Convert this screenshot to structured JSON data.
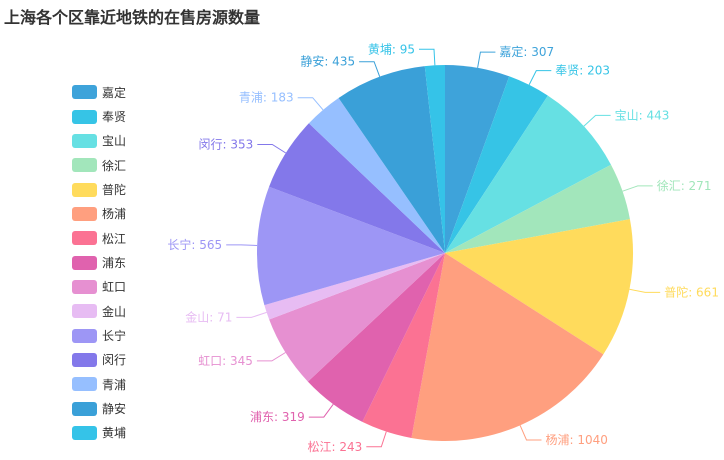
{
  "chart_data": {
    "type": "pie",
    "title": "上海各个区靠近地铁的在售房源数量",
    "legend_position": "left",
    "categories": [
      "嘉定",
      "奉贤",
      "宝山",
      "徐汇",
      "普陀",
      "杨浦",
      "松江",
      "浦东",
      "虹口",
      "金山",
      "长宁",
      "闵行",
      "青浦",
      "静安",
      "黄埔"
    ],
    "values": [
      307,
      203,
      443,
      271,
      661,
      1040,
      243,
      319,
      345,
      71,
      565,
      353,
      183,
      435,
      95
    ],
    "colors": [
      "#3ea3da",
      "#36c4e6",
      "#66e0e3",
      "#a2e6bb",
      "#ffdb5c",
      "#ff9f7f",
      "#fb7293",
      "#e062ae",
      "#e690d1",
      "#e7bcf3",
      "#9d96f5",
      "#8378ea",
      "#96bfff",
      "#3aa0d8",
      "#35c3e8"
    ]
  }
}
